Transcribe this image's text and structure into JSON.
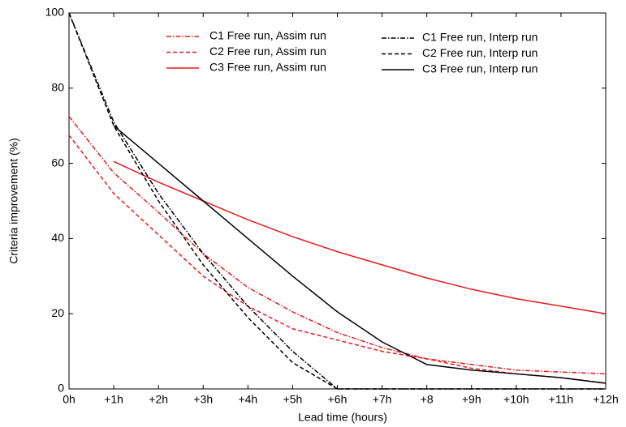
{
  "chart_data": {
    "type": "line",
    "xlabel": "Lead time (hours)",
    "ylabel": "Criteria improvement (%)",
    "categories": [
      "0h",
      "+1h",
      "+2h",
      "+3h",
      "+4h",
      "+5h",
      "+6h",
      "+7h",
      "+8",
      "+9h",
      "+10h",
      "+11h",
      "+12h"
    ],
    "ylim": [
      0,
      100
    ],
    "yticks": [
      0,
      20,
      40,
      60,
      80,
      100
    ],
    "series": [
      {
        "name": "C1 Free run, Assim run",
        "color": "#e8191f",
        "dash": "dashdot",
        "values": [
          72.5,
          57.5,
          47,
          36,
          27,
          20.5,
          15,
          11,
          8,
          6.5,
          5,
          4.5,
          4
        ]
      },
      {
        "name": "C2 Free run, Assim run",
        "color": "#e8191f",
        "dash": "dashed",
        "values": [
          67.5,
          52,
          41,
          30,
          22,
          16,
          13,
          10,
          8,
          5.5,
          4,
          3,
          1.5
        ]
      },
      {
        "name": "C3 Free run, Assim run",
        "color": "#e8191f",
        "dash": "solid",
        "values": [
          null,
          60.5,
          55,
          50,
          45,
          40.5,
          36.5,
          33,
          29.5,
          26.5,
          24,
          22,
          20
        ]
      },
      {
        "name": "C1 Free run, Interp run",
        "color": "#000000",
        "dash": "dashdot",
        "values": [
          100,
          71,
          52,
          36,
          22,
          10,
          0,
          0,
          0,
          0,
          0,
          0,
          0
        ]
      },
      {
        "name": "C2 Free run, Interp run",
        "color": "#000000",
        "dash": "dashed",
        "values": [
          100,
          70,
          50,
          33,
          19,
          7,
          0,
          0,
          0,
          0,
          0,
          0,
          0
        ]
      },
      {
        "name": "C3 Free run, Interp run",
        "color": "#000000",
        "dash": "solid",
        "values": [
          null,
          70,
          60,
          50,
          40,
          30,
          20.5,
          12.5,
          6.5,
          5,
          4,
          3,
          1.5
        ]
      }
    ]
  }
}
